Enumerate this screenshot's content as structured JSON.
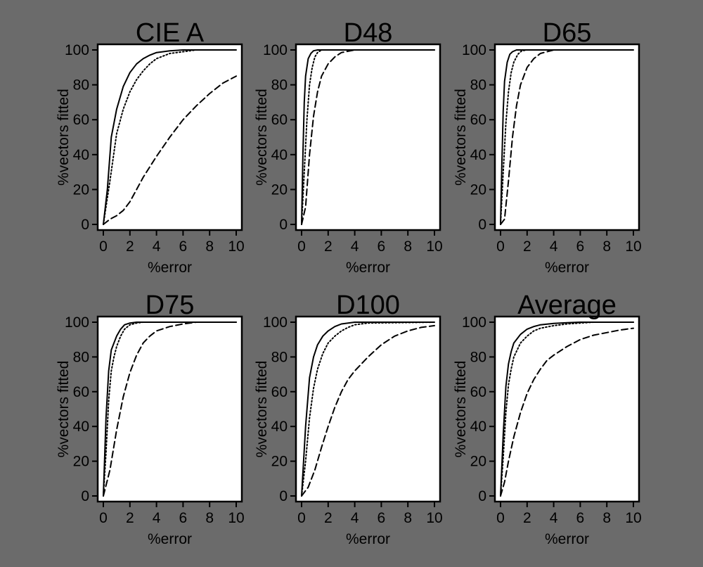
{
  "colors": {
    "background": "#6b6b6b",
    "plot_bg": "#ffffff",
    "ink": "#000000"
  },
  "chart_data": [
    {
      "type": "line",
      "title": "CIE A",
      "xlabel": "%error",
      "ylabel": "%vectors fitted",
      "xlim": [
        0,
        10
      ],
      "ylim": [
        0,
        100
      ],
      "xticks": [
        0,
        2,
        4,
        6,
        8,
        10
      ],
      "yticks": [
        0,
        20,
        40,
        60,
        80,
        100
      ],
      "series": [
        {
          "name": "solid",
          "style": "solid",
          "x": [
            0,
            0.3,
            0.6,
            1,
            1.5,
            2,
            2.5,
            3,
            3.5,
            4,
            5,
            6,
            7,
            8,
            10
          ],
          "y": [
            0,
            20,
            50,
            66,
            79,
            87,
            92,
            95,
            97,
            98.5,
            99.5,
            100,
            100,
            100,
            100
          ]
        },
        {
          "name": "dotted",
          "style": "dotted",
          "x": [
            0,
            0.5,
            1,
            1.5,
            2,
            2.5,
            3,
            3.5,
            4,
            4.5,
            5,
            6,
            7,
            8,
            10
          ],
          "y": [
            0,
            25,
            52,
            66,
            76,
            83,
            88,
            92,
            95,
            96.5,
            98,
            99,
            100,
            100,
            100
          ]
        },
        {
          "name": "dashed",
          "style": "dashed",
          "x": [
            0,
            0.5,
            1,
            1.5,
            2,
            2.5,
            3,
            3.5,
            4,
            5,
            6,
            7,
            8,
            9,
            10
          ],
          "y": [
            0,
            3,
            5,
            8,
            13,
            20,
            27,
            33,
            39,
            50,
            60,
            68,
            75,
            81,
            85
          ]
        }
      ]
    },
    {
      "type": "line",
      "title": "D48",
      "xlabel": "%error",
      "ylabel": "%vectors fitted",
      "xlim": [
        0,
        10
      ],
      "ylim": [
        0,
        100
      ],
      "xticks": [
        0,
        2,
        4,
        6,
        8,
        10
      ],
      "yticks": [
        0,
        20,
        40,
        60,
        80,
        100
      ],
      "series": [
        {
          "name": "solid",
          "style": "solid",
          "x": [
            0,
            0.1,
            0.2,
            0.3,
            0.5,
            0.7,
            0.9,
            1.2,
            2,
            10
          ],
          "y": [
            0,
            40,
            70,
            85,
            95,
            98,
            99.5,
            100,
            100,
            100
          ]
        },
        {
          "name": "dotted",
          "style": "dotted",
          "x": [
            0,
            0.2,
            0.4,
            0.6,
            0.8,
            1.0,
            1.2,
            1.5,
            2,
            10
          ],
          "y": [
            0,
            30,
            60,
            80,
            90,
            96,
            98.5,
            100,
            100,
            100
          ]
        },
        {
          "name": "dashed",
          "style": "dashed",
          "x": [
            0,
            0.3,
            0.6,
            0.9,
            1.2,
            1.5,
            2,
            2.5,
            3,
            4,
            10
          ],
          "y": [
            0,
            10,
            40,
            62,
            76,
            85,
            92,
            96,
            98.5,
            100,
            100
          ]
        }
      ]
    },
    {
      "type": "line",
      "title": "D65",
      "xlabel": "%error",
      "ylabel": "%vectors fitted",
      "xlim": [
        0,
        10
      ],
      "ylim": [
        0,
        100
      ],
      "xticks": [
        0,
        2,
        4,
        6,
        8,
        10
      ],
      "yticks": [
        0,
        20,
        40,
        60,
        80,
        100
      ],
      "series": [
        {
          "name": "solid",
          "style": "solid",
          "x": [
            0,
            0.1,
            0.2,
            0.3,
            0.5,
            0.7,
            0.9,
            1.2,
            2,
            10
          ],
          "y": [
            0,
            35,
            65,
            82,
            93,
            97.5,
            99,
            100,
            100,
            100
          ]
        },
        {
          "name": "dotted",
          "style": "dotted",
          "x": [
            0,
            0.2,
            0.4,
            0.6,
            0.8,
            1.0,
            1.3,
            1.6,
            2,
            10
          ],
          "y": [
            0,
            30,
            58,
            76,
            87,
            93,
            97.5,
            99.5,
            100,
            100
          ]
        },
        {
          "name": "dashed",
          "style": "dashed",
          "x": [
            0,
            0.3,
            0.6,
            0.9,
            1.2,
            1.5,
            2,
            2.5,
            3,
            4,
            10
          ],
          "y": [
            0,
            3,
            25,
            50,
            68,
            80,
            90,
            95,
            98,
            100,
            100
          ]
        }
      ]
    },
    {
      "type": "line",
      "title": "D75",
      "xlabel": "%error",
      "ylabel": "%vectors fitted",
      "xlim": [
        0,
        10
      ],
      "ylim": [
        0,
        100
      ],
      "xticks": [
        0,
        2,
        4,
        6,
        8,
        10
      ],
      "yticks": [
        0,
        20,
        40,
        60,
        80,
        100
      ],
      "series": [
        {
          "name": "solid",
          "style": "solid",
          "x": [
            0,
            0.2,
            0.4,
            0.6,
            0.8,
            1.0,
            1.3,
            1.6,
            2,
            2.5,
            10
          ],
          "y": [
            0,
            45,
            72,
            84,
            88,
            92,
            96,
            98.5,
            99.5,
            100,
            100
          ]
        },
        {
          "name": "dotted",
          "style": "dotted",
          "x": [
            0,
            0.2,
            0.4,
            0.6,
            0.8,
            1.0,
            1.3,
            1.6,
            2,
            2.5,
            3,
            10
          ],
          "y": [
            0,
            25,
            55,
            72,
            80,
            86,
            92,
            96,
            98.5,
            99.5,
            100,
            100
          ]
        },
        {
          "name": "dashed",
          "style": "dashed",
          "x": [
            0,
            0.5,
            1,
            1.5,
            2,
            2.5,
            3,
            3.5,
            4,
            5,
            6,
            7,
            10
          ],
          "y": [
            0,
            15,
            38,
            57,
            71,
            81,
            88,
            92,
            95,
            97.5,
            99,
            100,
            100
          ]
        }
      ]
    },
    {
      "type": "line",
      "title": "D100",
      "xlabel": "%error",
      "ylabel": "%vectors fitted",
      "xlim": [
        0,
        10
      ],
      "ylim": [
        0,
        100
      ],
      "xticks": [
        0,
        2,
        4,
        6,
        8,
        10
      ],
      "yticks": [
        0,
        20,
        40,
        60,
        80,
        100
      ],
      "series": [
        {
          "name": "solid",
          "style": "solid",
          "x": [
            0,
            0.3,
            0.6,
            0.9,
            1.2,
            1.6,
            2,
            2.5,
            3,
            3.5,
            4,
            10
          ],
          "y": [
            0,
            40,
            68,
            80,
            87,
            92,
            95,
            97.5,
            99,
            99.5,
            100,
            100
          ]
        },
        {
          "name": "dotted",
          "style": "dotted",
          "x": [
            0,
            0.3,
            0.6,
            0.9,
            1.2,
            1.6,
            2,
            2.5,
            3,
            3.5,
            4,
            5,
            10
          ],
          "y": [
            0,
            20,
            45,
            62,
            73,
            82,
            88,
            92,
            95,
            97,
            98.5,
            99.5,
            100
          ]
        },
        {
          "name": "dashed",
          "style": "dashed",
          "x": [
            0,
            0.5,
            1,
            1.5,
            2,
            2.5,
            3,
            3.5,
            4,
            5,
            6,
            7,
            8,
            9,
            10
          ],
          "y": [
            0,
            5,
            15,
            28,
            40,
            51,
            60,
            67,
            72,
            80,
            87,
            92,
            95,
            97,
            98
          ]
        }
      ]
    },
    {
      "type": "line",
      "title": "Average",
      "xlabel": "%error",
      "ylabel": "%vectors fitted",
      "xlim": [
        0,
        10
      ],
      "ylim": [
        0,
        100
      ],
      "xticks": [
        0,
        2,
        4,
        6,
        8,
        10
      ],
      "yticks": [
        0,
        20,
        40,
        60,
        80,
        100
      ],
      "series": [
        {
          "name": "solid",
          "style": "solid",
          "x": [
            0,
            0.2,
            0.4,
            0.6,
            0.8,
            1,
            1.5,
            2,
            2.5,
            3,
            4,
            5,
            6,
            10
          ],
          "y": [
            0,
            35,
            63,
            76,
            83,
            88,
            93,
            96,
            97.5,
            98.5,
            99.3,
            99.7,
            100,
            100
          ]
        },
        {
          "name": "dotted",
          "style": "dotted",
          "x": [
            0,
            0.2,
            0.4,
            0.6,
            0.8,
            1,
            1.5,
            2,
            2.5,
            3,
            4,
            5,
            6,
            7,
            8,
            10
          ],
          "y": [
            0,
            22,
            48,
            64,
            73,
            80,
            88,
            92,
            95,
            96.5,
            98,
            99,
            99.5,
            100,
            100,
            100
          ]
        },
        {
          "name": "dashed",
          "style": "dashed",
          "x": [
            0,
            0.3,
            0.6,
            1,
            1.5,
            2,
            2.5,
            3,
            3.5,
            4,
            5,
            6,
            7,
            8,
            9,
            10
          ],
          "y": [
            0,
            8,
            20,
            34,
            48,
            59,
            67,
            73,
            78,
            81,
            86,
            90,
            92.5,
            94,
            95.5,
            96.5
          ]
        }
      ]
    }
  ]
}
